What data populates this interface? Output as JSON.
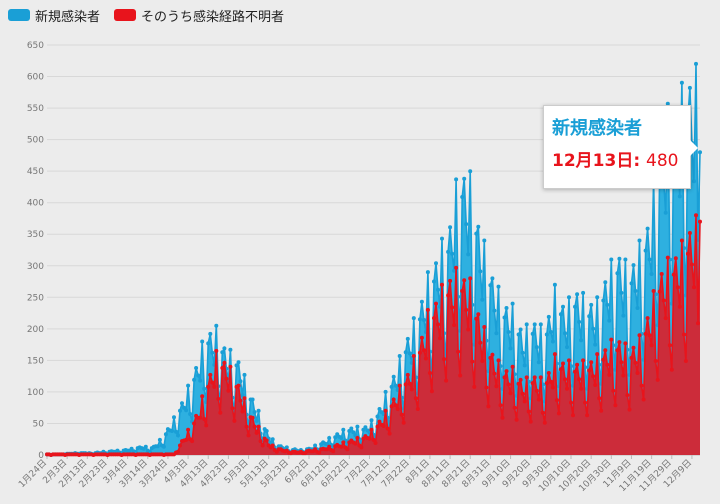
{
  "legend": [
    {
      "name": "新規感染者",
      "color": "#1a9fd6"
    },
    {
      "name": "そのうち感染経路不明者",
      "color": "#e8141c"
    }
  ],
  "tooltip": {
    "title": "新規感染者",
    "date": "12月13日:",
    "value": "480"
  },
  "chart_data": {
    "type": "area",
    "ylim": [
      0,
      650
    ],
    "yticks": [
      0,
      50,
      100,
      150,
      200,
      250,
      300,
      350,
      400,
      450,
      500,
      550,
      600,
      650
    ],
    "x_tick_labels": [
      "1月24日",
      "2月3日",
      "2月13日",
      "2月23日",
      "3月4日",
      "3月14日",
      "3月24日",
      "4月3日",
      "4月13日",
      "4月23日",
      "5月3日",
      "5月13日",
      "5月23日",
      "6月2日",
      "6月12日",
      "6月22日",
      "7月2日",
      "7月12日",
      "7月22日",
      "8月1日",
      "8月11日",
      "8月21日",
      "8月31日",
      "9月10日",
      "9月20日",
      "9月30日",
      "10月10日",
      "10月20日",
      "10月30日",
      "11月9日",
      "11月19日",
      "11月29日",
      "12月9日"
    ],
    "x_start": "1月24日",
    "x_end": "12月13日",
    "series": [
      {
        "name": "新規感染者",
        "color": "#1a9fd6",
        "fill": "#2eb0e0",
        "weekly_max": [
          1,
          1,
          2,
          4,
          3,
          4,
          6,
          8,
          10,
          14,
          12,
          30,
          60,
          95,
          140,
          200,
          205,
          170,
          160,
          110,
          70,
          30,
          15,
          10,
          8,
          12,
          20,
          30,
          40,
          45,
          45,
          60,
          100,
          140,
          190,
          230,
          290,
          330,
          370,
          470,
          450,
          360,
          300,
          250,
          240,
          200,
          220,
          200,
          270,
          240,
          270,
          250,
          250,
          300,
          330,
          300,
          340,
          390,
          530,
          570,
          590,
          620
        ],
        "final": 480
      },
      {
        "name": "そのうち感染経路不明者",
        "color": "#e8141c",
        "fill": "#cc2c3a",
        "weekly_max": [
          1,
          1,
          1,
          1,
          1,
          1,
          1,
          1,
          1,
          1,
          1,
          1,
          1,
          30,
          60,
          110,
          165,
          150,
          120,
          75,
          45,
          18,
          10,
          6,
          5,
          8,
          10,
          15,
          20,
          25,
          30,
          45,
          70,
          100,
          130,
          170,
          230,
          260,
          290,
          300,
          280,
          220,
          170,
          140,
          140,
          120,
          130,
          120,
          160,
          150,
          150,
          150,
          160,
          180,
          190,
          170,
          190,
          240,
          300,
          320,
          340,
          380
        ],
        "final": 370
      }
    ]
  }
}
